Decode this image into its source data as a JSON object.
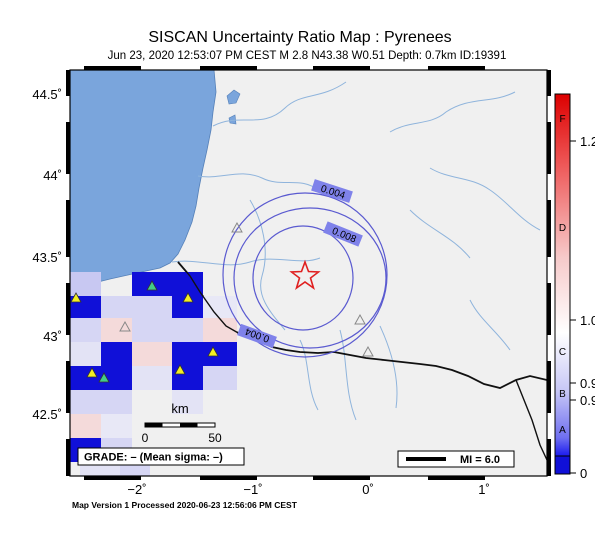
{
  "header": {
    "title": "SISCAN Uncertainty Ratio Map : Pyrenees",
    "subtitle": "Jun 23, 2020 12:53:07 PM CEST   M 2.8   N43.38 W0.51   Depth: 0.7km   ID:19391"
  },
  "axes": {
    "lat_labels": [
      "44.5˚",
      "44˚",
      "43.5˚",
      "43˚",
      "42.5˚"
    ],
    "lon_labels": [
      "−2˚",
      "−1˚",
      "0˚",
      "1˚"
    ]
  },
  "contours": {
    "outer_label": "0.004",
    "inner_label": "0.008",
    "south_label": "0.004"
  },
  "scale_bar": {
    "unit": "km",
    "start": "0",
    "end": "50"
  },
  "grade_box": {
    "text": "GRADE: – (Mean sigma: –)"
  },
  "mi_box": {
    "text": "MI = 6.0"
  },
  "color_bar": {
    "letters": [
      "F",
      "D",
      "C",
      "B",
      "A"
    ],
    "values": [
      "1.2",
      "1.0",
      "0.9",
      "0.9",
      "0"
    ]
  },
  "footer": {
    "text": "Map Version 1 Processed 2020-06-23 12:56:06 PM CEST"
  },
  "colors": {
    "sea": "#7aa5dc",
    "land": "#f0f0f0",
    "border": "#111111",
    "rivers": "#8fb4dc",
    "contour": "#5a5ad0",
    "contour_label_bg": "#7f82ea",
    "epicenter": "#e02020",
    "cell_dark": "#1010d8",
    "cell_mid": "#8f8fe8",
    "cell_light": "#d6d6f4",
    "cell_pink": "#f4dada",
    "station_green": "#44cc88",
    "station_yellow": "#f2ee22"
  },
  "markers": {
    "epicenter": "star-icon",
    "station_filled": "triangle-icon",
    "station_hollow": "triangle-outline-icon"
  }
}
